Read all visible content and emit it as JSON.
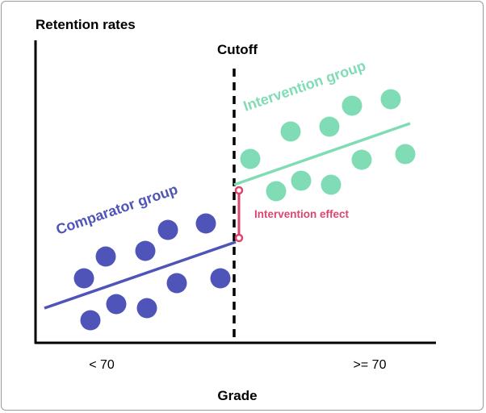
{
  "title": "Retention rates",
  "cutoff_label": "Cutoff",
  "x_axis_label": "Grade",
  "x_tick_left": "< 70",
  "x_tick_right": ">= 70",
  "comparator_label": "Comparator group",
  "intervention_label": "Intervention group",
  "effect_label": "Intervention effect",
  "colors": {
    "comparator": "#4f55b8",
    "intervention": "#80dcb5",
    "effect": "#d9476f",
    "axis": "#000000"
  }
}
